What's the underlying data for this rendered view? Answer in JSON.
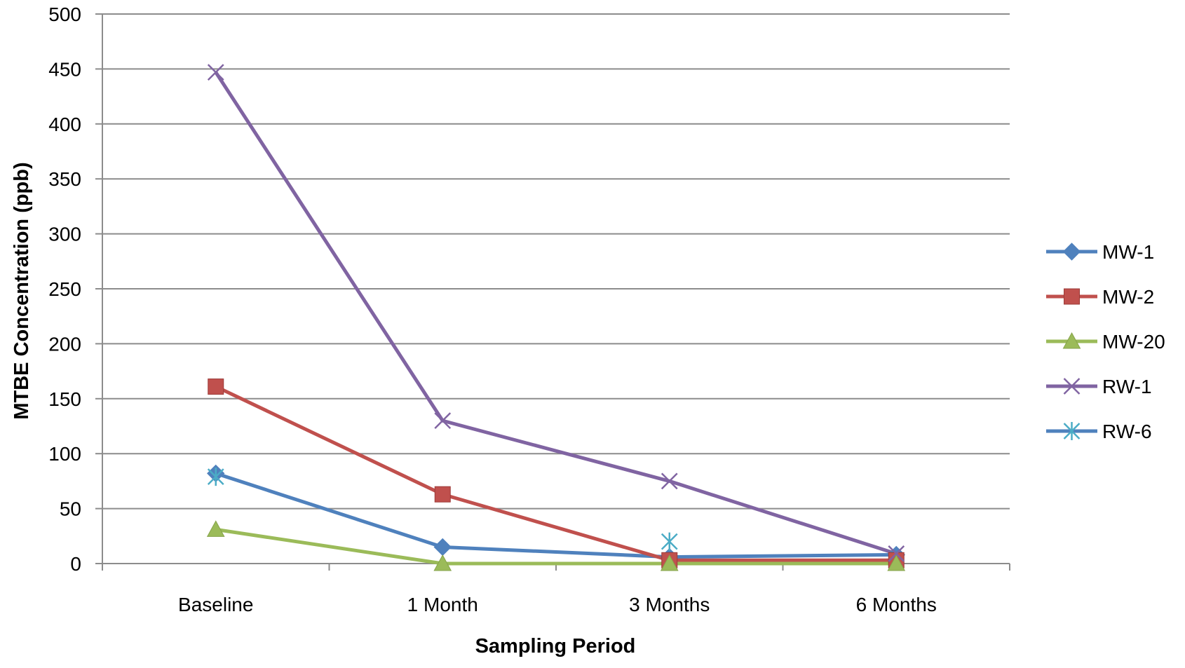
{
  "chart_data": {
    "type": "line",
    "categories": [
      "Baseline",
      "1 Month",
      "3 Months",
      "6 Months"
    ],
    "xlabel": "Sampling Period",
    "ylabel": "MTBE Concentration (ppb)",
    "ylim": [
      0,
      500
    ],
    "yticks": [
      0,
      50,
      100,
      150,
      200,
      250,
      300,
      350,
      400,
      450,
      500
    ],
    "grid": "horizontal",
    "legend_position": "right",
    "series": [
      {
        "name": "MW-1",
        "color": "#4F81BD",
        "marker": "diamond",
        "values": [
          82,
          15,
          6,
          8
        ]
      },
      {
        "name": "MW-2",
        "color": "#C0504D",
        "marker": "square",
        "values": [
          161,
          63,
          3,
          3
        ]
      },
      {
        "name": "MW-20",
        "color": "#9BBB59",
        "marker": "triangle",
        "values": [
          31,
          0,
          0,
          0
        ]
      },
      {
        "name": "RW-1",
        "color": "#8064A2",
        "marker": "x",
        "values": [
          447,
          130,
          75,
          9
        ]
      },
      {
        "name": "RW-6",
        "color": "#4BACC6",
        "line_color": "#4F81BD",
        "marker": "star",
        "values": [
          79,
          null,
          20,
          null
        ]
      }
    ]
  }
}
